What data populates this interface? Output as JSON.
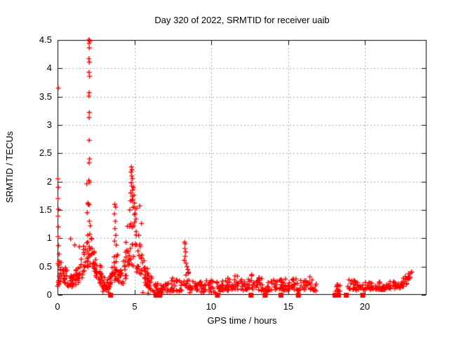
{
  "chart_data": {
    "type": "scatter",
    "title": "Day 320 of 2022, SRMTID for receiver uaib",
    "xlabel": "GPS time / hours",
    "ylabel": "SRMTID / TECUs",
    "xlim": [
      0,
      24
    ],
    "ylim": [
      0,
      4.5
    ],
    "xticks": [
      0,
      5,
      10,
      15,
      20
    ],
    "xtick_labels": [
      "0",
      "5",
      "10",
      "15",
      "20"
    ],
    "yticks": [
      0,
      0.5,
      1,
      1.5,
      2,
      2.5,
      3,
      3.5,
      4,
      4.5
    ],
    "ytick_labels": [
      "0",
      "0.5",
      "1",
      "1.5",
      "2",
      "2.5",
      "3",
      "3.5",
      "4",
      "4.5"
    ],
    "grid": true,
    "legend": "none",
    "marker": "plus",
    "marker_color": "#ff0000",
    "grid_color": "#a6a6a6",
    "border_color": "#000000",
    "text_color": "#000000",
    "background_color": "#ffffff",
    "seed": 7,
    "points": [
      [
        0.05,
        3.65
      ],
      [
        0.02,
        2.05
      ],
      [
        0.05,
        1.9
      ],
      [
        0.03,
        1.7
      ],
      [
        0.06,
        1.51
      ],
      [
        0.03,
        1.39
      ],
      [
        0.05,
        1.2
      ],
      [
        0.03,
        1.03
      ],
      [
        0.06,
        0.87
      ],
      [
        0.1,
        0.72
      ],
      [
        0.85,
        0.99
      ],
      [
        1.12,
        0.88
      ],
      [
        1.42,
        0.85
      ],
      [
        2.02,
        4.5
      ],
      [
        2.06,
        4.5
      ],
      [
        2.1,
        4.48
      ],
      [
        2.05,
        4.44
      ],
      [
        2.07,
        4.36
      ],
      [
        2.04,
        4.17
      ],
      [
        2.07,
        4.11
      ],
      [
        2.05,
        3.93
      ],
      [
        2.08,
        3.86
      ],
      [
        2.06,
        3.57
      ],
      [
        2.04,
        3.51
      ],
      [
        2.07,
        3.22
      ],
      [
        2.05,
        3.13
      ],
      [
        2.06,
        2.73
      ],
      [
        2.08,
        2.4
      ],
      [
        2.05,
        2.33
      ],
      [
        2.04,
        2.02
      ],
      [
        2.09,
        1.99
      ],
      [
        1.9,
        1.96
      ],
      [
        2.06,
        1.59
      ],
      [
        2.0,
        1.6
      ],
      [
        2.07,
        1.3
      ],
      [
        1.97,
        1.62
      ],
      [
        1.93,
        1.45
      ],
      [
        2.13,
        1.22
      ],
      [
        3.72,
        1.6
      ],
      [
        3.78,
        1.55
      ],
      [
        3.7,
        1.43
      ],
      [
        3.76,
        1.3
      ],
      [
        3.73,
        1.17
      ],
      [
        3.79,
        1.05
      ],
      [
        3.71,
        0.95
      ],
      [
        3.82,
        0.88
      ],
      [
        4.8,
        2.26
      ],
      [
        4.84,
        2.21
      ],
      [
        4.78,
        2.17
      ],
      [
        4.82,
        2.1
      ],
      [
        4.87,
        2.05
      ],
      [
        4.79,
        1.98
      ],
      [
        4.83,
        1.92
      ],
      [
        4.88,
        1.85
      ],
      [
        4.76,
        1.8
      ],
      [
        4.85,
        1.74
      ],
      [
        4.9,
        1.68
      ],
      [
        4.95,
        1.9
      ],
      [
        4.97,
        1.76
      ],
      [
        5.0,
        1.62
      ],
      [
        4.92,
        1.55
      ],
      [
        4.74,
        1.66
      ],
      [
        4.7,
        1.5
      ],
      [
        5.05,
        1.44
      ],
      [
        5.1,
        1.34
      ],
      [
        5.16,
        1.53
      ],
      [
        5.35,
        1.57
      ],
      [
        5.46,
        1.26
      ],
      [
        5.28,
        1.05
      ],
      [
        8.26,
        0.93
      ],
      [
        8.3,
        0.9
      ],
      [
        8.28,
        0.82
      ],
      [
        8.33,
        0.76
      ],
      [
        8.3,
        0.68
      ],
      [
        8.24,
        0.61
      ],
      [
        8.36,
        0.56
      ],
      [
        8.42,
        0.5
      ],
      [
        8.47,
        0.45
      ],
      [
        8.52,
        0.4
      ],
      [
        2.95,
        0.06
      ],
      [
        3.3,
        0.05
      ],
      [
        5.55,
        0.04
      ],
      [
        5.9,
        0.03
      ],
      [
        6.3,
        0.05
      ],
      [
        6.8,
        0.03
      ],
      [
        7.3,
        0.06
      ],
      [
        8.6,
        0.04
      ]
    ],
    "bands": [
      {
        "per_hour": 48,
        "nodes": [
          [
            0.0,
            0.15,
            0.62
          ],
          [
            0.35,
            0.25,
            0.58
          ],
          [
            0.7,
            0.15,
            0.42
          ],
          [
            1.0,
            0.14,
            0.3
          ],
          [
            1.3,
            0.2,
            0.5
          ],
          [
            1.6,
            0.3,
            0.8
          ],
          [
            1.85,
            0.4,
            1.0
          ],
          [
            2.05,
            0.5,
            1.12
          ],
          [
            2.25,
            0.45,
            1.0
          ],
          [
            2.5,
            0.32,
            0.68
          ],
          [
            2.8,
            0.2,
            0.52
          ],
          [
            3.05,
            0.08,
            0.33
          ],
          [
            3.35,
            0.1,
            0.32
          ],
          [
            3.6,
            0.2,
            0.62
          ],
          [
            3.8,
            0.28,
            0.85
          ],
          [
            4.0,
            0.2,
            0.68
          ],
          [
            4.2,
            0.14,
            0.5
          ],
          [
            4.45,
            0.3,
            0.95
          ],
          [
            4.65,
            0.45,
            1.55
          ],
          [
            4.85,
            0.55,
            1.95
          ],
          [
            5.05,
            0.45,
            1.6
          ],
          [
            5.25,
            0.35,
            1.1
          ],
          [
            5.5,
            0.25,
            0.75
          ],
          [
            5.8,
            0.15,
            0.5
          ],
          [
            6.2,
            0.06,
            0.28
          ]
        ]
      },
      {
        "per_hour": 30,
        "nodes": [
          [
            6.2,
            0.05,
            0.25
          ],
          [
            6.6,
            0.04,
            0.2
          ],
          [
            7.1,
            0.05,
            0.2
          ],
          [
            7.5,
            0.07,
            0.3
          ],
          [
            8.0,
            0.06,
            0.26
          ],
          [
            8.45,
            0.12,
            0.45
          ],
          [
            8.8,
            0.08,
            0.3
          ],
          [
            9.3,
            0.04,
            0.24
          ],
          [
            9.8,
            0.06,
            0.28
          ],
          [
            10.3,
            0.04,
            0.22
          ],
          [
            10.8,
            0.07,
            0.28
          ],
          [
            11.3,
            0.08,
            0.32
          ],
          [
            11.65,
            0.1,
            0.42
          ],
          [
            12.0,
            0.07,
            0.28
          ],
          [
            12.4,
            0.08,
            0.3
          ],
          [
            12.78,
            0.1,
            0.45
          ],
          [
            13.1,
            0.08,
            0.33
          ],
          [
            13.55,
            0.05,
            0.24
          ],
          [
            14.0,
            0.08,
            0.3
          ],
          [
            14.3,
            0.1,
            0.33
          ],
          [
            14.75,
            0.07,
            0.27
          ],
          [
            15.2,
            0.1,
            0.36
          ],
          [
            15.55,
            0.08,
            0.3
          ],
          [
            15.9,
            0.08,
            0.28
          ],
          [
            16.25,
            0.1,
            0.42
          ],
          [
            16.55,
            0.08,
            0.28
          ],
          [
            16.85,
            0.06,
            0.2
          ]
        ]
      },
      {
        "per_hour": 40,
        "nodes": [
          [
            18.08,
            0.06,
            0.2
          ],
          [
            18.4,
            0.06,
            0.18
          ]
        ]
      },
      {
        "per_hour": 30,
        "nodes": [
          [
            18.85,
            0.08,
            0.24
          ],
          [
            19.05,
            0.1,
            0.3
          ],
          [
            19.4,
            0.08,
            0.24
          ],
          [
            20.0,
            0.09,
            0.22
          ],
          [
            20.6,
            0.1,
            0.24
          ],
          [
            21.2,
            0.09,
            0.22
          ],
          [
            21.8,
            0.1,
            0.24
          ],
          [
            22.3,
            0.12,
            0.28
          ],
          [
            22.6,
            0.15,
            0.32
          ],
          [
            22.85,
            0.25,
            0.42
          ],
          [
            23.0,
            0.35,
            0.52
          ],
          [
            23.05,
            0.4,
            0.52
          ]
        ]
      }
    ],
    "zero_squares_x": [
      3.45,
      6.4,
      6.65,
      10.4,
      12.58,
      13.5,
      14.53,
      15.66,
      18.05,
      18.28,
      18.78,
      19.85
    ]
  }
}
